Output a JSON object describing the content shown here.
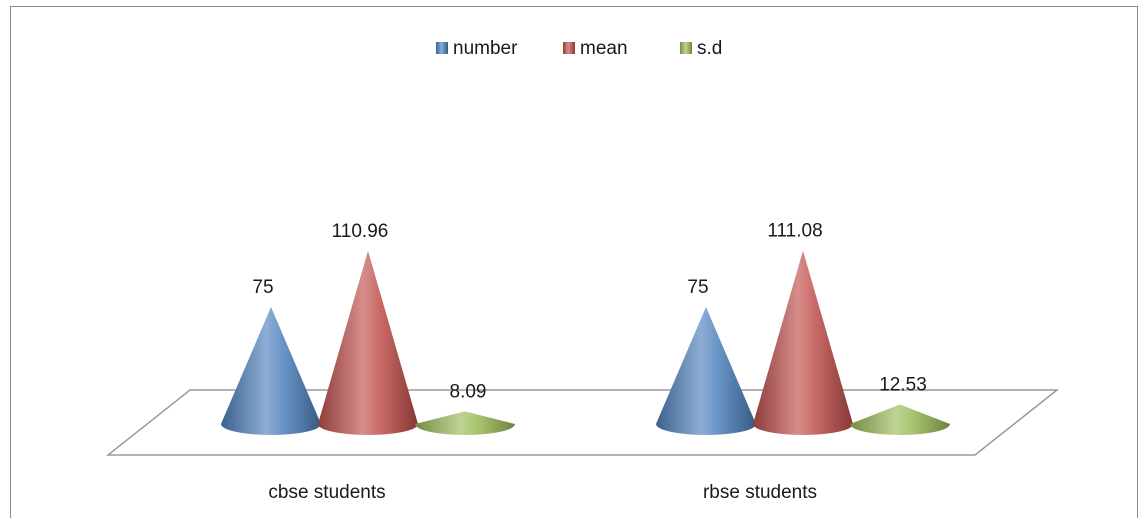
{
  "chart_data": {
    "type": "bar",
    "mark_shape": "3d-cone",
    "categories": [
      "cbse students",
      "rbse students"
    ],
    "series": [
      {
        "name": "number",
        "values": [
          75,
          75
        ],
        "labels": [
          "75",
          "75"
        ],
        "color": "#4f81bd"
      },
      {
        "name": "mean",
        "values": [
          110.96,
          111.08
        ],
        "labels": [
          "110.96",
          "111.08"
        ],
        "color": "#c0504d"
      },
      {
        "name": "s.d",
        "values": [
          8.09,
          12.53
        ],
        "labels": [
          "8.09",
          "12.53"
        ],
        "color": "#9bbb59"
      }
    ],
    "ylim": [
      0,
      130
    ],
    "grid": false,
    "legend_position": "top"
  }
}
